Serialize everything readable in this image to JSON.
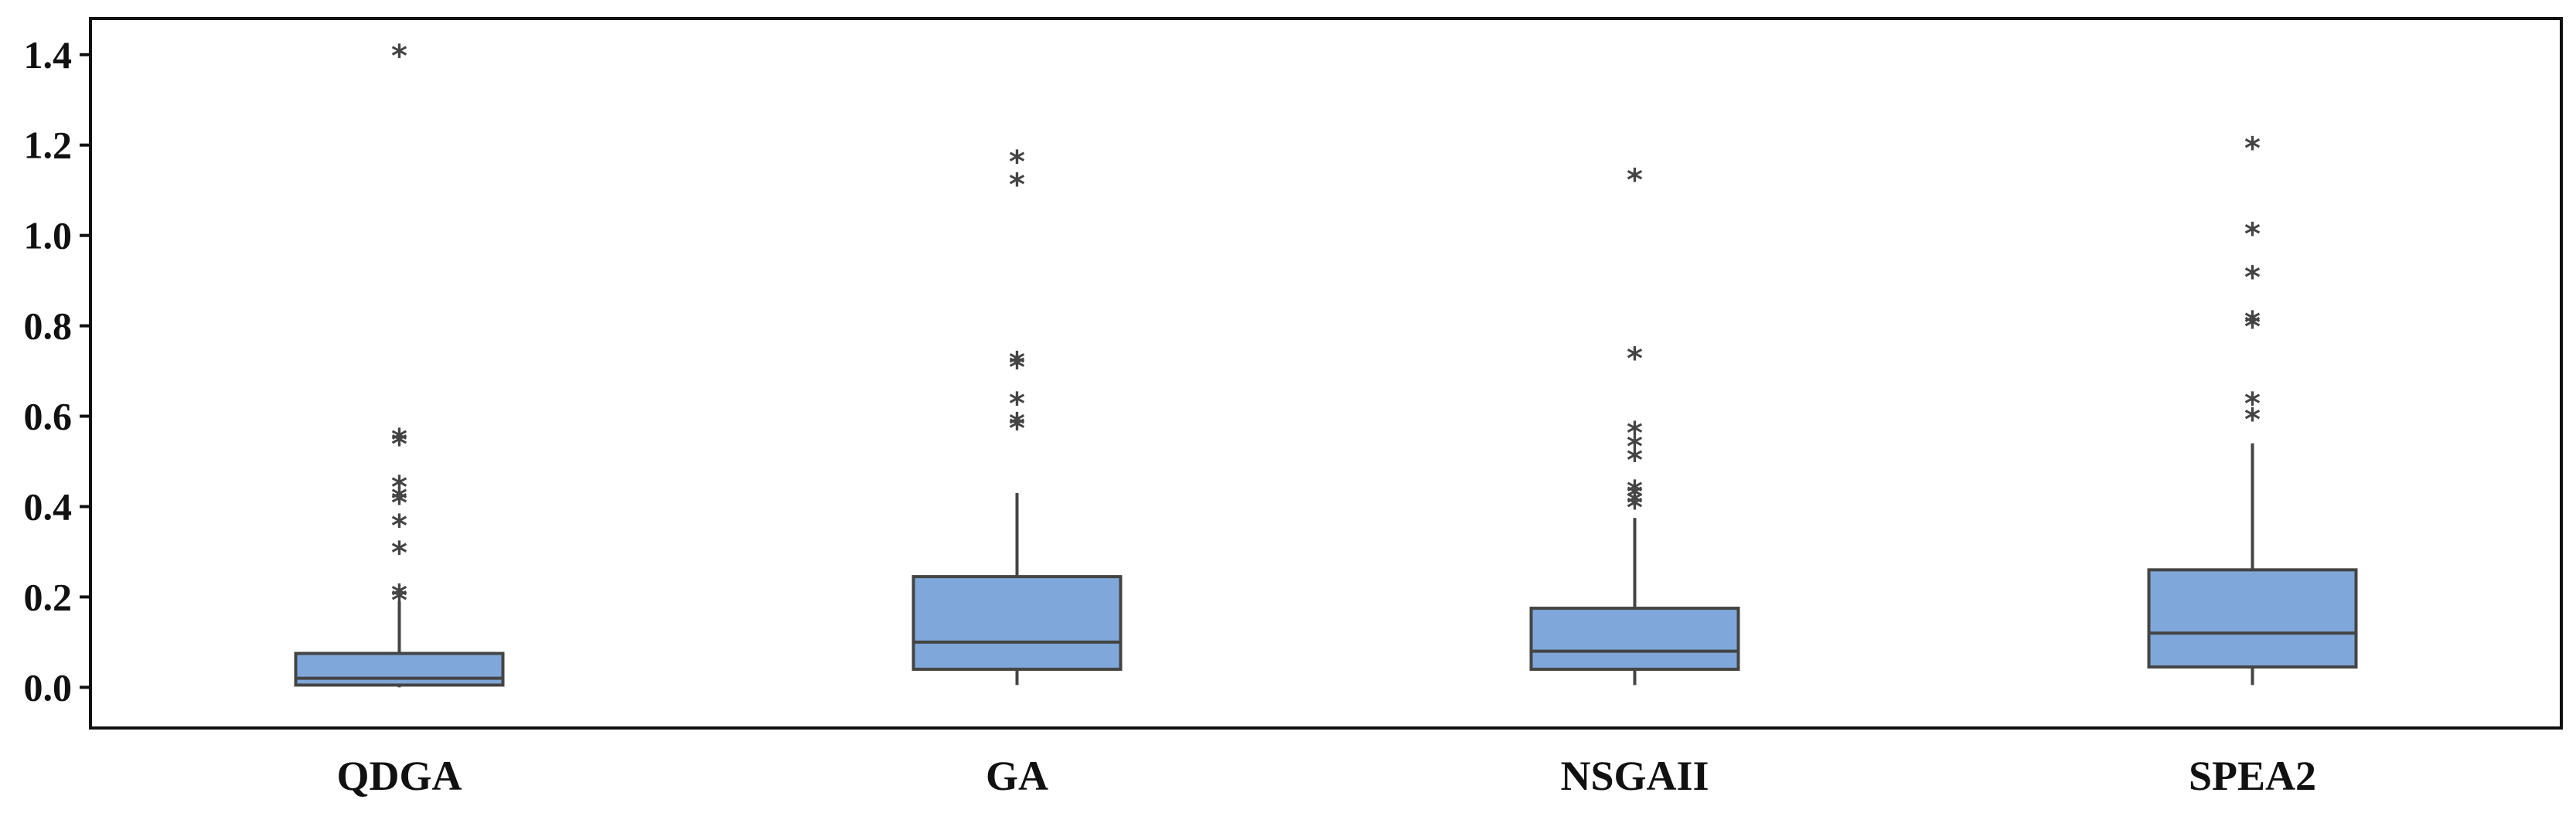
{
  "chart_data": {
    "type": "box",
    "title": "",
    "xlabel": "",
    "ylabel": "",
    "ylim": [
      -0.09,
      1.48
    ],
    "yticks": [
      0.0,
      0.2,
      0.4,
      0.6,
      0.8,
      1.0,
      1.2,
      1.4
    ],
    "ytick_labels": [
      "0.0",
      "0.2",
      "0.4",
      "0.6",
      "0.8",
      "1.0",
      "1.2",
      "1.4"
    ],
    "categories": [
      "QDGA",
      "GA",
      "NSGAII",
      "SPEA2"
    ],
    "outlier_marker": "*",
    "box_color": "#7FA7D9",
    "line_color": "#444444",
    "series": [
      {
        "name": "QDGA",
        "whisker_low": 0.0,
        "q1": 0.005,
        "median": 0.02,
        "q3": 0.075,
        "whisker_high": 0.19,
        "outliers": [
          1.4,
          0.55,
          0.54,
          0.445,
          0.42,
          0.41,
          0.36,
          0.3,
          0.205,
          0.195
        ]
      },
      {
        "name": "GA",
        "whisker_low": 0.005,
        "q1": 0.04,
        "median": 0.1,
        "q3": 0.245,
        "whisker_high": 0.43,
        "outliers": [
          1.165,
          1.115,
          0.72,
          0.71,
          0.63,
          0.585,
          0.575
        ]
      },
      {
        "name": "NSGAII",
        "whisker_low": 0.005,
        "q1": 0.04,
        "median": 0.08,
        "q3": 0.175,
        "whisker_high": 0.375,
        "outliers": [
          1.125,
          0.73,
          0.565,
          0.535,
          0.505,
          0.435,
          0.425,
          0.41,
          0.4
        ]
      },
      {
        "name": "SPEA2",
        "whisker_low": 0.005,
        "q1": 0.045,
        "median": 0.12,
        "q3": 0.26,
        "whisker_high": 0.54,
        "outliers": [
          1.195,
          1.005,
          0.91,
          0.81,
          0.8,
          0.63,
          0.595
        ]
      }
    ]
  }
}
